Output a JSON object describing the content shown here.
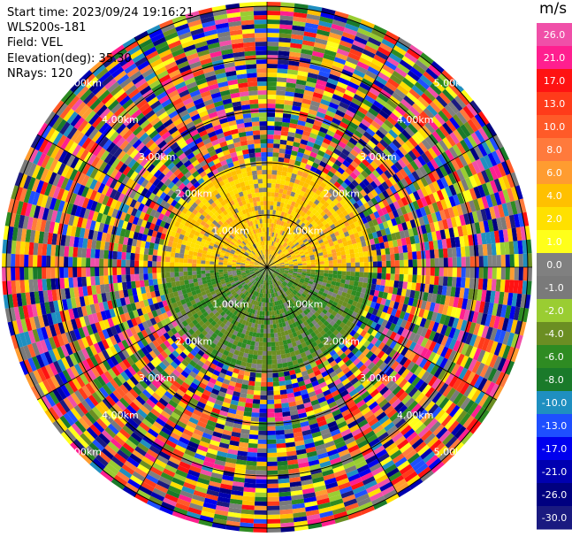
{
  "info": {
    "start_time": "Start time: 2023/09/24 19:16:21",
    "site": "WLS200s-181",
    "field": "Field: VEL",
    "elevation": "Elevation(deg): 35.30",
    "nrays": "NRays: 120"
  },
  "colorbar": {
    "unit": "m/s",
    "ticks": [
      "26.0",
      "21.0",
      "17.0",
      "13.0",
      "10.0",
      "8.0",
      "6.0",
      "4.0",
      "2.0",
      "1.0",
      "0.0",
      "-1.0",
      "-2.0",
      "-4.0",
      "-6.0",
      "-8.0",
      "-10.0",
      "-13.0",
      "-17.0",
      "-21.0",
      "-26.0",
      "-30.0"
    ],
    "colors": [
      "#f04fa8",
      "#ff1f8f",
      "#ff1212",
      "#ff3b1a",
      "#ff5a28",
      "#ff7a3c",
      "#ff9c30",
      "#ffc000",
      "#ffe000",
      "#ffff1a",
      "#808080",
      "#7a7a7a",
      "#9acd32",
      "#6b8e23",
      "#2e8b22",
      "#1a7a2a",
      "#1f8fc0",
      "#1e4fff",
      "#0000ee",
      "#0000b0",
      "#000080",
      "#1a1a80"
    ]
  },
  "ring_labels": [
    "1.00km",
    "2.00km",
    "3.00km",
    "4.00km",
    "5.00km"
  ]
}
